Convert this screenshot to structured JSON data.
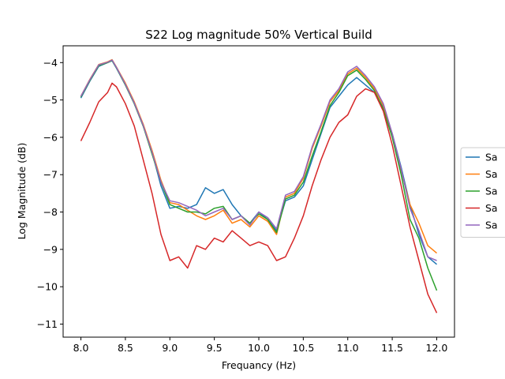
{
  "chart_data": {
    "type": "line",
    "title": "S22 Log magnitude 50% Vertical Build",
    "xlabel": "Frequancy (Hz)",
    "ylabel": "Log Magnitude (dB)",
    "xlim": [
      7.8,
      12.2
    ],
    "ylim": [
      -11.35,
      -3.55
    ],
    "xticks": [
      8.0,
      8.5,
      9.0,
      9.5,
      10.0,
      10.5,
      11.0,
      11.5,
      12.0
    ],
    "xtick_labels": [
      "8.0",
      "8.5",
      "9.0",
      "9.5",
      "10.0",
      "10.5",
      "11.0",
      "11.5",
      "12.0"
    ],
    "yticks": [
      -11,
      -10,
      -9,
      -8,
      -7,
      -6,
      -5,
      -4
    ],
    "ytick_labels": [
      "−11",
      "−10",
      "−9",
      "−8",
      "−7",
      "−6",
      "−5",
      "−4"
    ],
    "grid": false,
    "legend_position": "right",
    "x": [
      8.0,
      8.1,
      8.2,
      8.3,
      8.35,
      8.4,
      8.5,
      8.6,
      8.7,
      8.8,
      8.9,
      9.0,
      9.1,
      9.2,
      9.3,
      9.4,
      9.5,
      9.6,
      9.7,
      9.8,
      9.9,
      10.0,
      10.1,
      10.2,
      10.3,
      10.4,
      10.5,
      10.6,
      10.7,
      10.8,
      10.9,
      11.0,
      11.1,
      11.2,
      11.3,
      11.4,
      11.5,
      11.6,
      11.7,
      11.8,
      11.9,
      12.0
    ],
    "series": [
      {
        "name": "Sa",
        "color": "#1f77b4",
        "values": [
          -4.95,
          -4.5,
          -4.1,
          -4.0,
          -3.95,
          -4.15,
          -4.6,
          -5.1,
          -5.7,
          -6.4,
          -7.3,
          -7.9,
          -7.85,
          -7.9,
          -7.8,
          -7.35,
          -7.5,
          -7.4,
          -7.8,
          -8.1,
          -8.3,
          -8.0,
          -8.2,
          -8.5,
          -7.7,
          -7.6,
          -7.3,
          -6.6,
          -5.9,
          -5.2,
          -4.9,
          -4.6,
          -4.4,
          -4.6,
          -4.8,
          -5.2,
          -5.9,
          -6.8,
          -7.8,
          -8.6,
          -9.2,
          -9.4
        ]
      },
      {
        "name": "Sa",
        "color": "#ff7f0e",
        "values": [
          -4.9,
          -4.45,
          -4.05,
          -3.98,
          -3.92,
          -4.12,
          -4.55,
          -5.05,
          -5.65,
          -6.35,
          -7.15,
          -7.75,
          -7.8,
          -7.95,
          -8.1,
          -8.2,
          -8.1,
          -7.95,
          -8.3,
          -8.2,
          -8.4,
          -8.1,
          -8.25,
          -8.6,
          -7.6,
          -7.5,
          -7.1,
          -6.3,
          -5.7,
          -5.05,
          -4.75,
          -4.3,
          -4.15,
          -4.4,
          -4.7,
          -5.15,
          -5.95,
          -6.9,
          -7.8,
          -8.3,
          -8.9,
          -9.1
        ]
      },
      {
        "name": "Sa",
        "color": "#2ca02c",
        "values": [
          -4.92,
          -4.48,
          -4.08,
          -4.0,
          -3.94,
          -4.14,
          -4.6,
          -5.1,
          -5.7,
          -6.45,
          -7.2,
          -7.8,
          -7.9,
          -8.0,
          -8.0,
          -8.05,
          -7.9,
          -7.85,
          -8.2,
          -8.1,
          -8.3,
          -8.05,
          -8.2,
          -8.55,
          -7.65,
          -7.55,
          -7.2,
          -6.5,
          -5.85,
          -5.15,
          -4.8,
          -4.35,
          -4.2,
          -4.45,
          -4.75,
          -5.25,
          -6.0,
          -7.0,
          -8.2,
          -8.7,
          -9.5,
          -10.1
        ]
      },
      {
        "name": "Sa",
        "color": "#d62728",
        "values": [
          -6.1,
          -5.6,
          -5.05,
          -4.8,
          -4.55,
          -4.65,
          -5.1,
          -5.7,
          -6.6,
          -7.5,
          -8.6,
          -9.3,
          -9.2,
          -9.5,
          -8.9,
          -9.0,
          -8.7,
          -8.8,
          -8.5,
          -8.7,
          -8.9,
          -8.8,
          -8.9,
          -9.3,
          -9.2,
          -8.7,
          -8.1,
          -7.3,
          -6.6,
          -6.0,
          -5.6,
          -5.4,
          -4.9,
          -4.7,
          -4.8,
          -5.3,
          -6.2,
          -7.3,
          -8.4,
          -9.3,
          -10.2,
          -10.7
        ]
      },
      {
        "name": "Sa",
        "color": "#9467bd",
        "values": [
          -4.9,
          -4.46,
          -4.06,
          -3.99,
          -3.93,
          -4.13,
          -4.58,
          -5.08,
          -5.68,
          -6.4,
          -7.2,
          -7.7,
          -7.75,
          -7.85,
          -7.95,
          -8.1,
          -8.0,
          -7.9,
          -8.2,
          -8.1,
          -8.35,
          -8.0,
          -8.15,
          -8.45,
          -7.55,
          -7.45,
          -7.05,
          -6.25,
          -5.65,
          -5.0,
          -4.7,
          -4.25,
          -4.1,
          -4.35,
          -4.65,
          -5.1,
          -5.9,
          -6.85,
          -7.9,
          -8.5,
          -9.2,
          -9.3
        ]
      }
    ]
  }
}
